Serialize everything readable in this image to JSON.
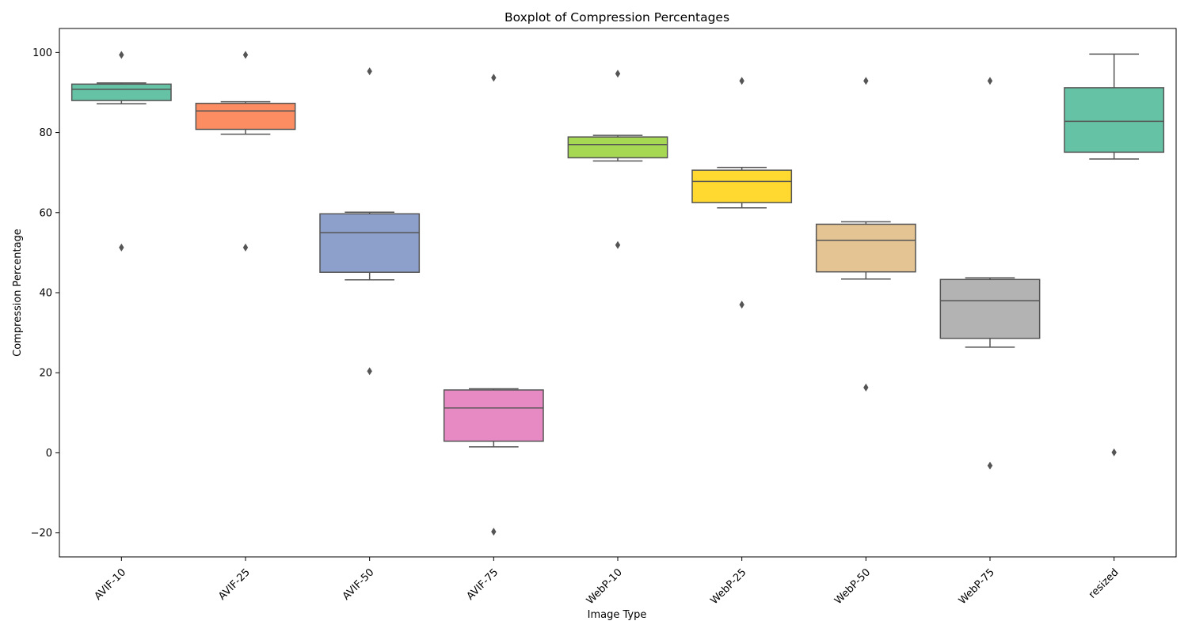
{
  "chart_data": {
    "type": "boxplot",
    "title": "Boxplot of Compression Percentages",
    "xlabel": "Image Type",
    "ylabel": "Compression Percentage",
    "ylim": [
      -26,
      106
    ],
    "yticks": [
      -20,
      0,
      20,
      40,
      60,
      80,
      100
    ],
    "grid": false,
    "categories": [
      "AVIF-10",
      "AVIF-25",
      "AVIF-50",
      "AVIF-75",
      "WebP-10",
      "WebP-25",
      "WebP-50",
      "WebP-75",
      "resized"
    ],
    "colors": [
      "#66c2a5",
      "#fc8d62",
      "#8da0cb",
      "#e78ac3",
      "#a6d854",
      "#ffd92f",
      "#e5c494",
      "#b3b3b3",
      "#66c2a5"
    ],
    "boxes": [
      {
        "whisker_low": 87.2,
        "q1": 88.0,
        "median": 90.8,
        "q3": 92.1,
        "whisker_high": 92.4,
        "outliers": [
          99.4,
          51.3
        ]
      },
      {
        "whisker_low": 79.6,
        "q1": 80.8,
        "median": 85.4,
        "q3": 87.3,
        "whisker_high": 87.7,
        "outliers": [
          99.4,
          51.3
        ]
      },
      {
        "whisker_low": 43.2,
        "q1": 45.1,
        "median": 55.0,
        "q3": 59.7,
        "whisker_high": 60.1,
        "outliers": [
          95.3,
          20.4
        ]
      },
      {
        "whisker_low": 1.5,
        "q1": 2.9,
        "median": 11.2,
        "q3": 15.7,
        "whisker_high": 16.0,
        "outliers": [
          93.7,
          -19.7
        ]
      },
      {
        "whisker_low": 72.9,
        "q1": 73.7,
        "median": 77.0,
        "q3": 78.9,
        "whisker_high": 79.3,
        "outliers": [
          94.7,
          51.9
        ]
      },
      {
        "whisker_low": 61.2,
        "q1": 62.5,
        "median": 67.8,
        "q3": 70.6,
        "whisker_high": 71.3,
        "outliers": [
          92.9,
          37.0
        ]
      },
      {
        "whisker_low": 43.4,
        "q1": 45.2,
        "median": 53.1,
        "q3": 57.1,
        "whisker_high": 57.7,
        "outliers": [
          92.9,
          16.3
        ]
      },
      {
        "whisker_low": 26.4,
        "q1": 28.6,
        "median": 38.0,
        "q3": 43.3,
        "whisker_high": 43.7,
        "outliers": [
          92.9,
          -3.2
        ]
      },
      {
        "whisker_low": 73.4,
        "q1": 75.1,
        "median": 82.8,
        "q3": 91.2,
        "whisker_high": 99.6,
        "outliers": [
          0.1
        ]
      }
    ]
  }
}
